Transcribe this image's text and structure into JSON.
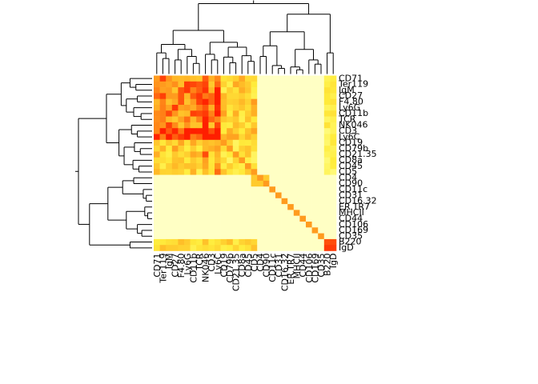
{
  "chart_data": {
    "type": "heatmap",
    "title": "",
    "xlabel": "",
    "ylabel": "",
    "labels": [
      "CD71",
      "Ter119",
      "IgM",
      "CD27",
      "F4.80",
      "Ly6G",
      "CD11b",
      "TCR",
      "NK046",
      "CD3",
      "Ly6C",
      "CD19",
      "CD79b",
      "CD21.35",
      "CD8a",
      "CD45",
      "CD5",
      "CD4",
      "CD90",
      "CD11c",
      "CD31",
      "CD16.32",
      "ER.TR7",
      "MHCII",
      "CD44",
      "CD106",
      "CD169",
      "CD35",
      "B220",
      "IgD"
    ],
    "col_labels": [
      "CD71",
      "Ter119",
      "IgM",
      "CD27",
      "F4.80",
      "Ly6G",
      "CD11b",
      "TCR",
      "NK046",
      "CD3",
      "Ly6C",
      "CD19",
      "CD79b",
      "CD21.35",
      "CD8a",
      "CD45",
      "CD5",
      "CD4",
      "CD90",
      "CD11c",
      "CD31",
      "CD16.32",
      "ER.TR7",
      "MHCII",
      "CD44",
      "CD106",
      "CD169",
      "CD35",
      "B220",
      "IgD"
    ],
    "row_labels": [
      "CD71",
      "Ter119",
      "IgM",
      "CD27",
      "F4.80",
      "Ly6G",
      "CD11b",
      "TCR",
      "NK046",
      "CD3",
      "Ly6C",
      "CD19",
      "CD79b",
      "CD21.35",
      "CD8a",
      "CD45",
      "CD5",
      "CD4",
      "CD90",
      "CD11c",
      "CD31",
      "CD16.32",
      "ER.TR7",
      "MHCII",
      "CD44",
      "CD106",
      "CD169",
      "CD35",
      "B220",
      "IgD"
    ],
    "colorscale": "heat.colors (red = high, pale yellow = low)",
    "value_range": [
      0,
      1
    ],
    "dendrograms": [
      "top (columns)",
      "left (rows)"
    ]
  }
}
